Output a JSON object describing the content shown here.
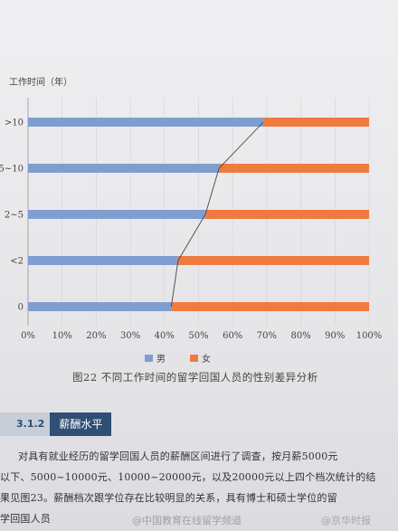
{
  "chart_data": {
    "type": "bar",
    "orientation": "horizontal",
    "stacked": true,
    "percent": true,
    "ylabel": "工作时间（年）",
    "categories": [
      ">10",
      "5~10",
      "2~5",
      "<2",
      "0"
    ],
    "series": [
      {
        "name": "男",
        "color": "#7f9ed0",
        "values": [
          69,
          56,
          52,
          44,
          42
        ]
      },
      {
        "name": "女",
        "color": "#f07b3f",
        "values": [
          31,
          44,
          48,
          56,
          58
        ]
      }
    ],
    "trend_line": true,
    "xlim": [
      0,
      100
    ],
    "xticks": [
      "0%",
      "10%",
      "20%",
      "30%",
      "40%",
      "50%",
      "60%",
      "70%",
      "80%",
      "90%",
      "100%"
    ],
    "legend": "bottom-center"
  },
  "caption": "图22   不同工作时间的留学回国人员的性别差异分析",
  "section": {
    "number": "3.1.2",
    "title": "薪酬水平"
  },
  "body_lines": [
    "对具有就业经历的留学回国人员的薪酬区间进行了调查，按月薪5000元",
    "以下、5000~10000元、10000~20000元，以及20000元以上四个档次统计的结",
    "果见图23。薪酬档次跟学位存在比较明显的关系，具有博士和硕士学位的留",
    "学回国人员"
  ],
  "watermarks": [
    "@中国教育在线留学频道",
    "@京华时报"
  ]
}
